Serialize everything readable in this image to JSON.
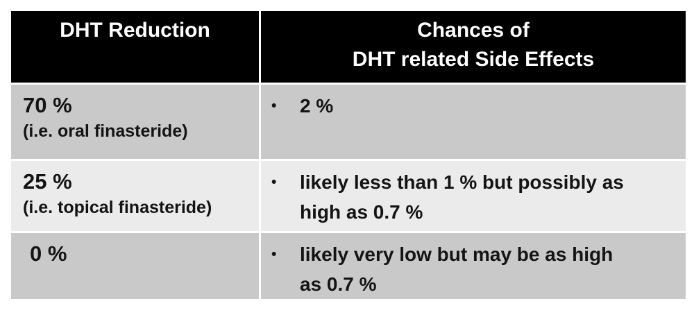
{
  "table": {
    "bullet": "•",
    "columns": [
      {
        "header": "DHT Reduction"
      },
      {
        "header": "Chances of\nDHT related Side Effects"
      }
    ],
    "rows": [
      {
        "reduction": "70 %",
        "note": "(i.e. oral finasteride)",
        "chance": "2 %"
      },
      {
        "reduction": "25 %",
        "note": "(i.e. topical finasteride)",
        "chance": "likely less than 1 % but possibly as\nhigh as 0.7 %"
      },
      {
        "reduction": "0 %",
        "note": "",
        "chance": "likely very low but may be as high\nas 0.7 %"
      }
    ],
    "colors": {
      "header_bg": "#000000",
      "header_text": "#ffffff",
      "row_dark": "#c9c9c9",
      "row_light": "#ebebeb",
      "body_text": "#141414",
      "separator": "#ffffff"
    }
  }
}
